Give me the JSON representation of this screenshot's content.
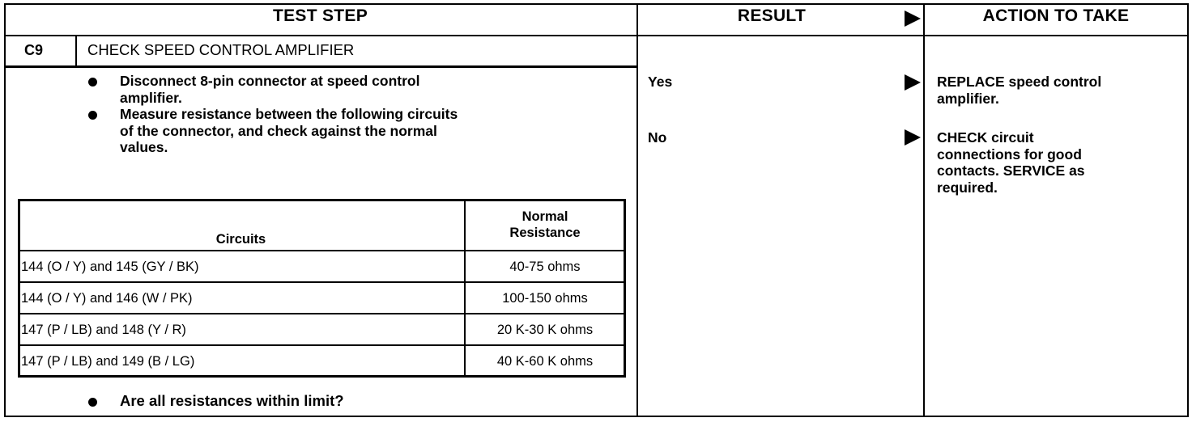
{
  "headers": {
    "test_step": "TEST STEP",
    "result": "RESULT",
    "action": "ACTION TO TAKE"
  },
  "step": {
    "id": "C9",
    "title": "CHECK SPEED CONTROL AMPLIFIER",
    "bullets": [
      [
        "Disconnect 8-pin connector at speed control",
        "amplifier."
      ],
      [
        "Measure resistance between the following circuits",
        "of the connector, and check against the normal",
        "values."
      ]
    ],
    "question": "Are all resistances within limit?"
  },
  "table": {
    "col_circuits": "Circuits",
    "col_resistance": [
      "Normal",
      "Resistance"
    ],
    "rows": [
      {
        "circuits": "144 (O / Y) and 145 (GY / BK)",
        "resistance": "40-75 ohms"
      },
      {
        "circuits": "144 (O / Y) and 146 (W / PK)",
        "resistance": "100-150 ohms"
      },
      {
        "circuits": "147 (P / LB) and 148 (Y / R)",
        "resistance": "20 K-30 K ohms"
      },
      {
        "circuits": "147 (P / LB) and 149 (B / LG)",
        "resistance": "40 K-60 K ohms"
      }
    ]
  },
  "results": [
    {
      "label": "Yes",
      "action": [
        "REPLACE speed control",
        "amplifier."
      ]
    },
    {
      "label": "No",
      "action": [
        "CHECK circuit",
        "connections for good",
        "contacts. SERVICE as",
        "required."
      ]
    }
  ],
  "icons": {
    "arrow": "right-pointing-triangle",
    "bullet": "filled-circle"
  }
}
